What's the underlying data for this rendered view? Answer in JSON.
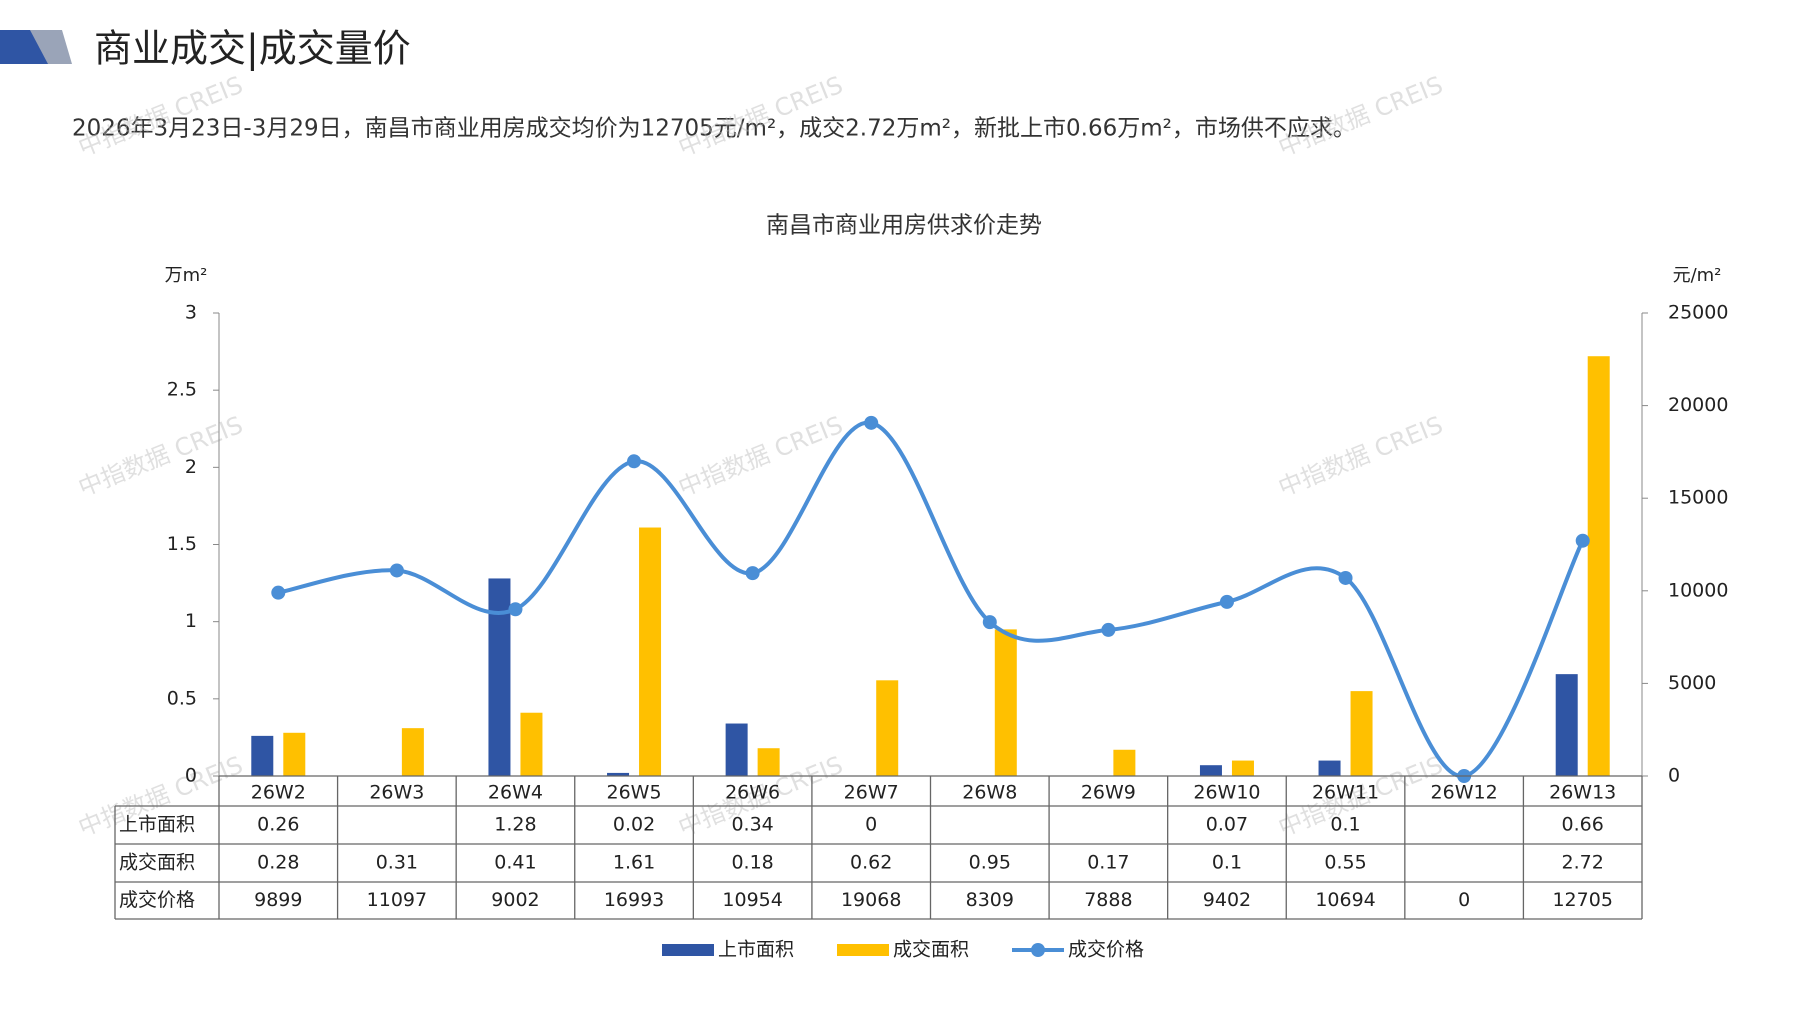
{
  "chart_data": {
    "type": "bar",
    "header": "商业成交|成交量价",
    "summary": "2026年3月23日-3月29日，南昌市商业用房成交均价为12705元/m²，成交2.72万m²，新批上市0.66万m²，市场供不应求。",
    "title": "南昌市商业用房供求价走势",
    "ylabel": "万m²",
    "y2label": "元/m²",
    "watermark": "中指数据 CREIS",
    "categories": [
      "26W2",
      "26W3",
      "26W4",
      "26W5",
      "26W6",
      "26W7",
      "26W8",
      "26W9",
      "26W10",
      "26W11",
      "26W12",
      "26W13"
    ],
    "series": [
      {
        "name": "上市面积",
        "color": "#2f55a4",
        "type": "bar",
        "axis": "y",
        "values": [
          0.26,
          null,
          1.28,
          0.02,
          0.34,
          0,
          null,
          null,
          0.07,
          0.1,
          null,
          0.66
        ]
      },
      {
        "name": "成交面积",
        "color": "#ffc000",
        "type": "bar",
        "axis": "y",
        "values": [
          0.28,
          0.31,
          0.41,
          1.61,
          0.18,
          0.62,
          0.95,
          0.17,
          0.1,
          0.55,
          null,
          2.72
        ]
      },
      {
        "name": "成交价格",
        "color": "#4a8ed6",
        "type": "line",
        "axis": "y2",
        "values": [
          9899,
          11097,
          9002,
          16993,
          10954,
          19068,
          8309,
          7888,
          9402,
          10694,
          0,
          12705
        ]
      }
    ],
    "ylim": [
      0,
      3
    ],
    "yticks": [
      0,
      0.5,
      1,
      1.5,
      2,
      2.5,
      3
    ],
    "y2lim": [
      0,
      25000
    ],
    "y2ticks": [
      0,
      5000,
      10000,
      15000,
      20000,
      25000
    ]
  }
}
